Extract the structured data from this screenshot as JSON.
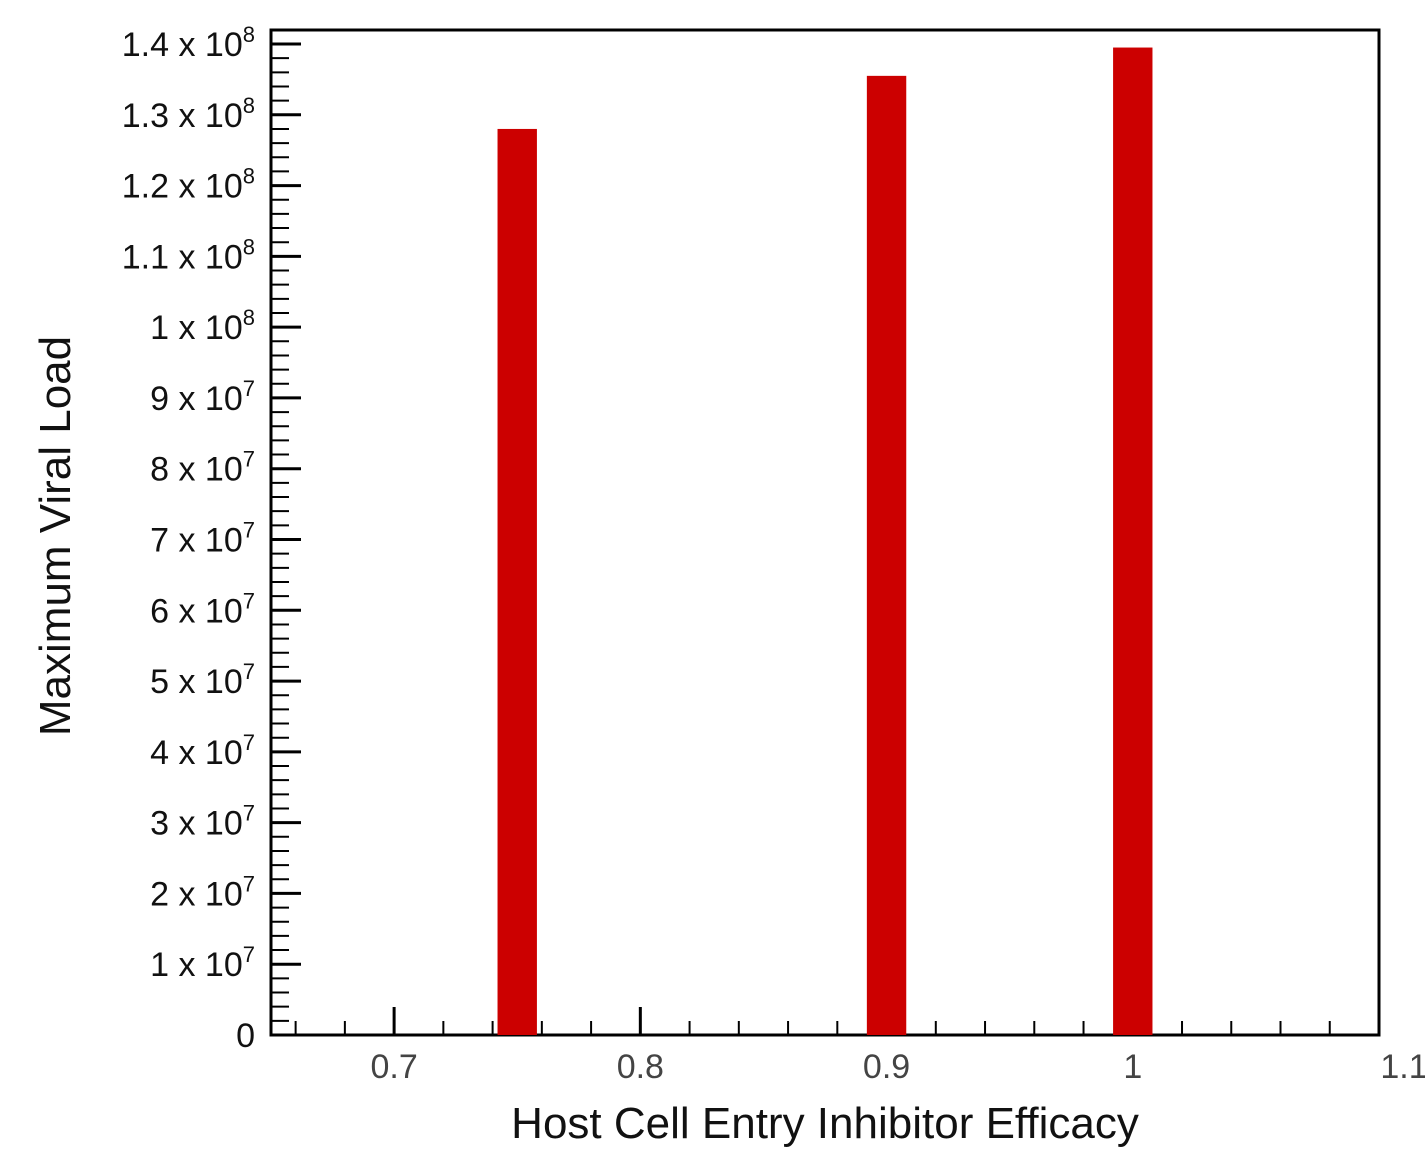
{
  "chart_data": {
    "type": "bar",
    "title": "",
    "xlabel": "Host Cell Entry Inhibitor Efficacy",
    "ylabel": "Maximum Viral Load",
    "x": [
      0.75,
      0.9,
      1.0
    ],
    "values": [
      128000000,
      135500000,
      139500000
    ],
    "xlim": [
      0.65,
      1.1
    ],
    "ylim": [
      0,
      140000000
    ],
    "x_ticks": [
      "0.7",
      "0.8",
      "0.9",
      "1",
      "1.1"
    ],
    "x_tick_values": [
      0.7,
      0.8,
      0.9,
      1.0,
      1.1
    ],
    "y_ticks": [
      {
        "value": 0,
        "mantissa": "0",
        "exponent": ""
      },
      {
        "value": 10000000,
        "mantissa": "1 x 10",
        "exponent": "7"
      },
      {
        "value": 20000000,
        "mantissa": "2 x 10",
        "exponent": "7"
      },
      {
        "value": 30000000,
        "mantissa": "3 x 10",
        "exponent": "7"
      },
      {
        "value": 40000000,
        "mantissa": "4 x 10",
        "exponent": "7"
      },
      {
        "value": 50000000,
        "mantissa": "5 x 10",
        "exponent": "7"
      },
      {
        "value": 60000000,
        "mantissa": "6 x 10",
        "exponent": "7"
      },
      {
        "value": 70000000,
        "mantissa": "7 x 10",
        "exponent": "7"
      },
      {
        "value": 80000000,
        "mantissa": "8 x 10",
        "exponent": "7"
      },
      {
        "value": 90000000,
        "mantissa": "9 x 10",
        "exponent": "7"
      },
      {
        "value": 100000000,
        "mantissa": "1 x 10",
        "exponent": "8"
      },
      {
        "value": 110000000,
        "mantissa": "1.1 x 10",
        "exponent": "8"
      },
      {
        "value": 120000000,
        "mantissa": "1.2 x 10",
        "exponent": "8"
      },
      {
        "value": 130000000,
        "mantissa": "1.3 x 10",
        "exponent": "8"
      },
      {
        "value": 140000000,
        "mantissa": "1.4 x 10",
        "exponent": "8"
      }
    ],
    "grid": false,
    "legend": "none",
    "bar_color": "#cc0000",
    "axis_color": "#000000"
  }
}
